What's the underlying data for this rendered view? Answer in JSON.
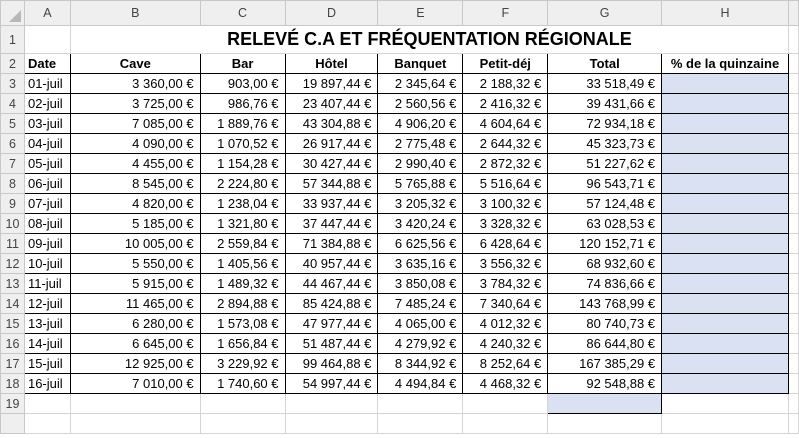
{
  "columns": [
    "A",
    "B",
    "C",
    "D",
    "E",
    "F",
    "G",
    "H"
  ],
  "rows": [
    "1",
    "2",
    "3",
    "4",
    "5",
    "6",
    "7",
    "8",
    "9",
    "10",
    "11",
    "12",
    "13",
    "14",
    "15",
    "16",
    "17",
    "18",
    "19"
  ],
  "title": "RELEVÉ C.A ET FRÉQUENTATION RÉGIONALE",
  "headers": [
    "Date",
    "Cave",
    "Bar",
    "Hôtel",
    "Banquet",
    "Petit-déj",
    "Total",
    "% de la quinzaine"
  ],
  "data": [
    [
      "01-juil",
      "3 360,00 €",
      "903,00 €",
      "19 897,44 €",
      "2 345,64 €",
      "2 188,32 €",
      "33 518,49 €",
      ""
    ],
    [
      "02-juil",
      "3 725,00 €",
      "986,76 €",
      "23 407,44 €",
      "2 560,56 €",
      "2 416,32 €",
      "39 431,66 €",
      ""
    ],
    [
      "03-juil",
      "7 085,00 €",
      "1 889,76 €",
      "43 304,88 €",
      "4 906,20 €",
      "4 604,64 €",
      "72 934,18 €",
      ""
    ],
    [
      "04-juil",
      "4 090,00 €",
      "1 070,52 €",
      "26 917,44 €",
      "2 775,48 €",
      "2 644,32 €",
      "45 323,73 €",
      ""
    ],
    [
      "05-juil",
      "4 455,00 €",
      "1 154,28 €",
      "30 427,44 €",
      "2 990,40 €",
      "2 872,32 €",
      "51 227,62 €",
      ""
    ],
    [
      "06-juil",
      "8 545,00 €",
      "2 224,80 €",
      "57 344,88 €",
      "5 765,88 €",
      "5 516,64 €",
      "96 543,71 €",
      ""
    ],
    [
      "07-juil",
      "4 820,00 €",
      "1 238,04 €",
      "33 937,44 €",
      "3 205,32 €",
      "3 100,32 €",
      "57 124,48 €",
      ""
    ],
    [
      "08-juil",
      "5 185,00 €",
      "1 321,80 €",
      "37 447,44 €",
      "3 420,24 €",
      "3 328,32 €",
      "63 028,53 €",
      ""
    ],
    [
      "09-juil",
      "10 005,00 €",
      "2 559,84 €",
      "71 384,88 €",
      "6 625,56 €",
      "6 428,64 €",
      "120 152,71 €",
      ""
    ],
    [
      "10-juil",
      "5 550,00 €",
      "1 405,56 €",
      "40 957,44 €",
      "3 635,16 €",
      "3 556,32 €",
      "68 932,60 €",
      ""
    ],
    [
      "11-juil",
      "5 915,00 €",
      "1 489,32 €",
      "44 467,44 €",
      "3 850,08 €",
      "3 784,32 €",
      "74 836,66 €",
      ""
    ],
    [
      "12-juil",
      "11 465,00 €",
      "2 894,88 €",
      "85 424,88 €",
      "7 485,24 €",
      "7 340,64 €",
      "143 768,99 €",
      ""
    ],
    [
      "13-juil",
      "6 280,00 €",
      "1 573,08 €",
      "47 977,44 €",
      "4 065,00 €",
      "4 012,32 €",
      "80 740,73 €",
      ""
    ],
    [
      "14-juil",
      "6 645,00 €",
      "1 656,84 €",
      "51 487,44 €",
      "4 279,92 €",
      "4 240,32 €",
      "86 644,80 €",
      ""
    ],
    [
      "15-juil",
      "12 925,00 €",
      "3 229,92 €",
      "99 464,88 €",
      "8 344,92 €",
      "8 252,64 €",
      "167 385,29 €",
      ""
    ],
    [
      "16-juil",
      "7 010,00 €",
      "1 740,60 €",
      "54 997,44 €",
      "4 494,84 €",
      "4 468,32 €",
      "92 548,88 €",
      ""
    ]
  ],
  "colors": {
    "highlight": "#d9e1f2",
    "header_bg": "#efefef",
    "gridline": "#d4d4d4"
  }
}
